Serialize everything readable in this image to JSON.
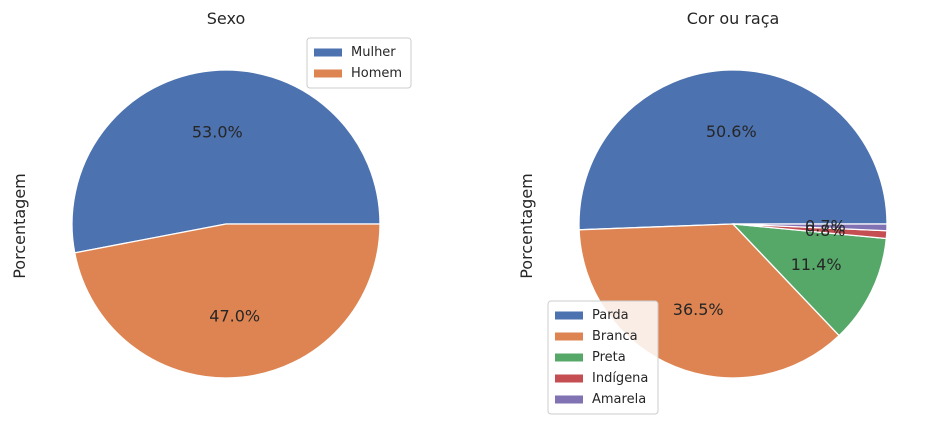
{
  "chart_data": [
    {
      "type": "pie",
      "title": "Sexo",
      "ylabel": "Porcentagem",
      "categories": [
        "Mulher",
        "Homem"
      ],
      "values": [
        53.0,
        47.0
      ],
      "labels": [
        "53.0%",
        "47.0%"
      ],
      "colors": [
        "#4c72b0",
        "#dd8452"
      ],
      "legend_position": "top-right"
    },
    {
      "type": "pie",
      "title": "Cor ou raça",
      "ylabel": "Porcentagem",
      "categories": [
        "Parda",
        "Branca",
        "Preta",
        "Indígena",
        "Amarela"
      ],
      "values": [
        50.6,
        36.5,
        11.4,
        0.8,
        0.7
      ],
      "labels": [
        "50.6%",
        "36.5%",
        "11.4%",
        "0.8%",
        "0.7%"
      ],
      "colors": [
        "#4c72b0",
        "#dd8452",
        "#55a868",
        "#c44e52",
        "#8172b3"
      ],
      "legend_position": "lower-left"
    }
  ]
}
